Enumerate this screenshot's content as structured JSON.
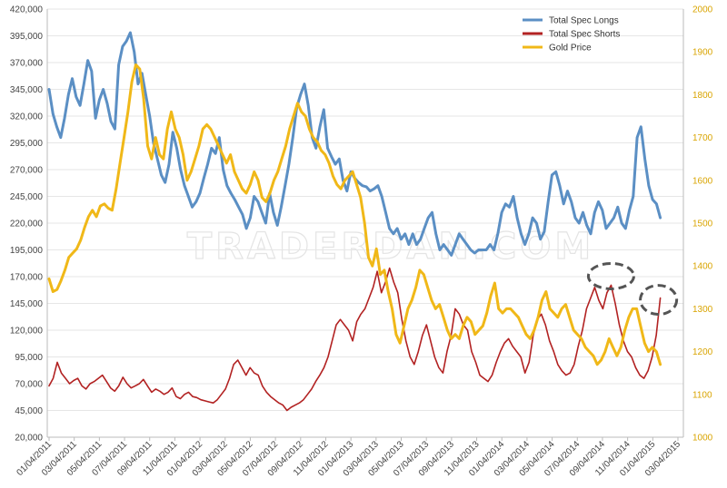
{
  "chart_data": {
    "type": "line",
    "watermark": "TRADERDAN.COM",
    "left_axis": {
      "min": 20000,
      "max": 420000,
      "step": 25000,
      "ticks": [
        "20,000",
        "45,000",
        "70,000",
        "95,000",
        "120,000",
        "145,000",
        "170,000",
        "195,000",
        "220,000",
        "245,000",
        "270,000",
        "295,000",
        "320,000",
        "345,000",
        "370,000",
        "395,000",
        "420,000"
      ]
    },
    "right_axis": {
      "min": 1000,
      "max": 2000,
      "step": 100,
      "ticks": [
        "1000",
        "1100",
        "1200",
        "1300",
        "1400",
        "1500",
        "1600",
        "1700",
        "1800",
        "1900",
        "2000"
      ]
    },
    "x_labels": [
      "01/04/2011",
      "03/04/2011",
      "05/04/2011",
      "07/04/2011",
      "09/04/2011",
      "11/04/2011",
      "01/04/2012",
      "03/04/2012",
      "05/04/2012",
      "07/04/2012",
      "09/04/2012",
      "11/04/2012",
      "01/04/2013",
      "03/04/2013",
      "05/04/2013",
      "07/04/2013",
      "09/04/2013",
      "11/04/2013",
      "01/04/2014",
      "03/04/2014",
      "05/04/2014",
      "07/04/2014",
      "09/04/2014",
      "11/04/2014",
      "01/04/2015",
      "03/04/2015"
    ],
    "legend": [
      {
        "label": "Total Spec Longs",
        "color": "#5b8fc4"
      },
      {
        "label": "Total Spec Shorts",
        "color": "#b22222"
      },
      {
        "label": "Gold Price",
        "color": "#f0b818"
      }
    ],
    "series": [
      {
        "name": "Total Spec Longs",
        "axis": "left",
        "color": "#5b8fc4",
        "x_start": 0,
        "x_end": 24.3,
        "values": [
          345000,
          322000,
          310000,
          300000,
          318000,
          340000,
          355000,
          338000,
          330000,
          350000,
          372000,
          362000,
          318000,
          335000,
          345000,
          332000,
          315000,
          308000,
          368000,
          385000,
          390000,
          398000,
          380000,
          350000,
          360000,
          340000,
          320000,
          295000,
          280000,
          265000,
          258000,
          275000,
          305000,
          290000,
          270000,
          255000,
          245000,
          235000,
          240000,
          248000,
          262000,
          275000,
          290000,
          285000,
          300000,
          270000,
          255000,
          248000,
          242000,
          235000,
          228000,
          215000,
          225000,
          245000,
          240000,
          230000,
          220000,
          248000,
          230000,
          218000,
          235000,
          255000,
          275000,
          300000,
          328000,
          340000,
          350000,
          330000,
          300000,
          290000,
          310000,
          326000,
          290000,
          282000,
          275000,
          280000,
          260000,
          250000,
          268000,
          262000,
          258000,
          255000,
          254000,
          250000,
          252000,
          255000,
          245000,
          230000,
          215000,
          210000,
          215000,
          205000,
          210000,
          200000,
          210000,
          200000,
          205000,
          215000,
          225000,
          230000,
          210000,
          195000,
          200000,
          195000,
          190000,
          200000,
          210000,
          205000,
          200000,
          195000,
          192000,
          195000,
          195000,
          195000,
          200000,
          195000,
          210000,
          230000,
          238000,
          235000,
          245000,
          225000,
          210000,
          200000,
          210000,
          225000,
          220000,
          205000,
          212000,
          240000,
          265000,
          268000,
          255000,
          238000,
          250000,
          240000,
          225000,
          220000,
          230000,
          218000,
          210000,
          230000,
          240000,
          232000,
          215000,
          220000,
          225000,
          235000,
          220000,
          215000,
          232000,
          245000,
          300000,
          310000,
          280000,
          255000,
          242000,
          238000,
          225000
        ]
      },
      {
        "name": "Total Spec Shorts",
        "axis": "left",
        "color": "#b22222",
        "x_start": 0,
        "x_end": 24.3,
        "values": [
          68000,
          75000,
          90000,
          80000,
          75000,
          70000,
          73000,
          75000,
          68000,
          65000,
          70000,
          72000,
          75000,
          78000,
          72000,
          66000,
          63000,
          68000,
          76000,
          70000,
          66000,
          68000,
          70000,
          74000,
          68000,
          62000,
          65000,
          63000,
          60000,
          62000,
          66000,
          58000,
          56000,
          60000,
          62000,
          58000,
          57000,
          55000,
          54000,
          53000,
          52000,
          55000,
          60000,
          65000,
          75000,
          88000,
          92000,
          85000,
          78000,
          85000,
          80000,
          78000,
          68000,
          62000,
          58000,
          55000,
          52000,
          50000,
          45000,
          48000,
          50000,
          52000,
          55000,
          60000,
          65000,
          72000,
          78000,
          85000,
          95000,
          110000,
          125000,
          130000,
          125000,
          120000,
          110000,
          128000,
          135000,
          140000,
          150000,
          160000,
          175000,
          155000,
          165000,
          178000,
          165000,
          155000,
          130000,
          110000,
          95000,
          88000,
          100000,
          115000,
          125000,
          110000,
          95000,
          85000,
          80000,
          100000,
          115000,
          140000,
          135000,
          125000,
          120000,
          100000,
          90000,
          78000,
          75000,
          72000,
          78000,
          90000,
          100000,
          108000,
          112000,
          105000,
          100000,
          95000,
          80000,
          90000,
          115000,
          130000,
          135000,
          125000,
          110000,
          100000,
          88000,
          82000,
          78000,
          80000,
          88000,
          105000,
          120000,
          140000,
          150000,
          160000,
          148000,
          140000,
          155000,
          162000,
          145000,
          125000,
          110000,
          100000,
          95000,
          85000,
          78000,
          75000,
          82000,
          95000,
          115000,
          150000
        ]
      },
      {
        "name": "Gold Price",
        "axis": "right",
        "color": "#f0b818",
        "x_start": 0,
        "x_end": 24.3,
        "values": [
          1370,
          1340,
          1345,
          1365,
          1390,
          1420,
          1430,
          1440,
          1460,
          1490,
          1515,
          1530,
          1515,
          1540,
          1545,
          1535,
          1530,
          1580,
          1640,
          1700,
          1760,
          1830,
          1870,
          1860,
          1790,
          1680,
          1650,
          1700,
          1660,
          1650,
          1720,
          1760,
          1720,
          1700,
          1660,
          1600,
          1620,
          1650,
          1680,
          1720,
          1730,
          1720,
          1700,
          1680,
          1660,
          1640,
          1660,
          1620,
          1600,
          1580,
          1570,
          1590,
          1620,
          1600,
          1560,
          1550,
          1570,
          1600,
          1620,
          1650,
          1680,
          1720,
          1750,
          1780,
          1760,
          1750,
          1720,
          1700,
          1690,
          1670,
          1660,
          1640,
          1610,
          1590,
          1580,
          1600,
          1610,
          1620,
          1590,
          1560,
          1500,
          1420,
          1400,
          1440,
          1380,
          1390,
          1340,
          1300,
          1240,
          1220,
          1260,
          1300,
          1320,
          1350,
          1390,
          1380,
          1350,
          1320,
          1300,
          1310,
          1280,
          1250,
          1230,
          1240,
          1230,
          1260,
          1280,
          1270,
          1240,
          1250,
          1260,
          1290,
          1330,
          1360,
          1300,
          1290,
          1300,
          1300,
          1290,
          1280,
          1260,
          1240,
          1230,
          1250,
          1280,
          1320,
          1340,
          1300,
          1290,
          1280,
          1300,
          1310,
          1280,
          1250,
          1240,
          1230,
          1210,
          1200,
          1190,
          1170,
          1180,
          1200,
          1230,
          1210,
          1190,
          1210,
          1250,
          1280,
          1300,
          1300,
          1260,
          1220,
          1200,
          1210,
          1200,
          1170
        ]
      }
    ],
    "annotations": [
      {
        "shape": "dashed-ellipse",
        "near": "Total Spec Shorts peak, 11/04/2014"
      },
      {
        "shape": "dashed-ellipse",
        "near": "Total Spec Shorts latest value, 03/04/2015"
      }
    ]
  }
}
